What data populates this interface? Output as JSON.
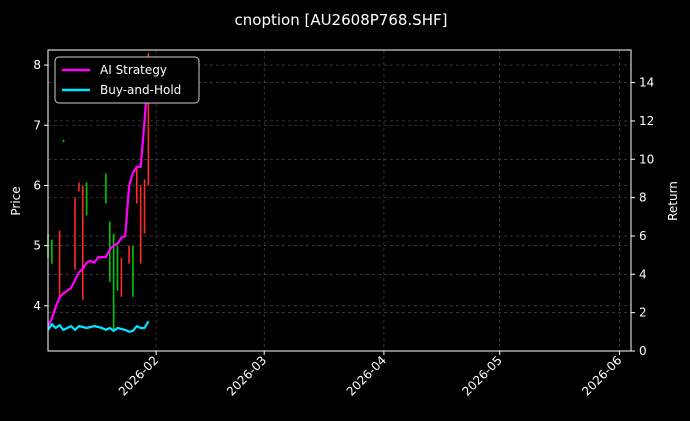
{
  "chart_data": {
    "type": "line",
    "title": "cnoption [AU2608P768.SHF]",
    "ylabel_left": "Price",
    "ylabel_right": "Return",
    "xlim": [
      "2026-01-04",
      "2026-06-04"
    ],
    "ylim_left": [
      3.25,
      8.25
    ],
    "ylim_right": [
      0,
      15.7
    ],
    "x_ticks": [
      "2026-02",
      "2026-03",
      "2026-04",
      "2026-05",
      "2026-06"
    ],
    "x_tick_dates": [
      "2026-02-01",
      "2026-03-01",
      "2026-04-01",
      "2026-05-01",
      "2026-06-01"
    ],
    "y_ticks_left": [
      4,
      5,
      6,
      7,
      8
    ],
    "y_ticks_right": [
      0,
      2,
      4,
      6,
      8,
      10,
      12,
      14
    ],
    "grid": true,
    "legend_position": "top-left",
    "series": [
      {
        "name": "AI Strategy",
        "color": "#ff00ff",
        "axis": "right",
        "x": [
          "2026-01-04",
          "2026-01-05",
          "2026-01-06",
          "2026-01-07",
          "2026-01-08",
          "2026-01-10",
          "2026-01-12",
          "2026-01-13",
          "2026-01-14",
          "2026-01-15",
          "2026-01-16",
          "2026-01-17",
          "2026-01-19",
          "2026-01-20",
          "2026-01-21",
          "2026-01-22",
          "2026-01-23",
          "2026-01-24",
          "2026-01-25",
          "2026-01-26",
          "2026-01-27",
          "2026-01-28",
          "2026-01-29",
          "2026-01-30"
        ],
        "values": [
          1.3,
          1.7,
          2.3,
          2.8,
          3.0,
          3.3,
          4.1,
          4.3,
          4.6,
          4.7,
          4.6,
          4.9,
          4.9,
          5.3,
          5.5,
          5.6,
          5.9,
          6.0,
          8.6,
          9.3,
          9.6,
          9.6,
          12.0,
          14.5
        ]
      },
      {
        "name": "Buy-and-Hold",
        "color": "#00e5ff",
        "axis": "right",
        "x": [
          "2026-01-04",
          "2026-01-05",
          "2026-01-06",
          "2026-01-07",
          "2026-01-08",
          "2026-01-10",
          "2026-01-11",
          "2026-01-12",
          "2026-01-13",
          "2026-01-14",
          "2026-01-16",
          "2026-01-17",
          "2026-01-18",
          "2026-01-19",
          "2026-01-20",
          "2026-01-21",
          "2026-01-22",
          "2026-01-24",
          "2026-01-25",
          "2026-01-26",
          "2026-01-27",
          "2026-01-28",
          "2026-01-29",
          "2026-01-30"
        ],
        "values": [
          1.1,
          1.4,
          1.2,
          1.35,
          1.1,
          1.3,
          1.1,
          1.3,
          1.25,
          1.2,
          1.3,
          1.25,
          1.2,
          1.1,
          1.2,
          1.05,
          1.2,
          1.1,
          1.0,
          1.05,
          1.3,
          1.2,
          1.2,
          1.55
        ]
      }
    ],
    "candles": {
      "up_color": "#00c800",
      "down_color": "#ff2a2a",
      "items": [
        {
          "date": "2026-01-04",
          "low": 4.8,
          "high": 5.2,
          "dir": "up"
        },
        {
          "date": "2026-01-05",
          "low": 4.7,
          "high": 5.1,
          "dir": "up"
        },
        {
          "date": "2026-01-07",
          "low": 4.15,
          "high": 5.25,
          "dir": "down"
        },
        {
          "date": "2026-01-08",
          "low": 6.72,
          "high": 6.76,
          "dir": "up"
        },
        {
          "date": "2026-01-11",
          "low": 4.6,
          "high": 5.8,
          "dir": "down"
        },
        {
          "date": "2026-01-12",
          "low": 5.9,
          "high": 6.05,
          "dir": "down"
        },
        {
          "date": "2026-01-13",
          "low": 4.1,
          "high": 6.0,
          "dir": "down"
        },
        {
          "date": "2026-01-14",
          "low": 5.5,
          "high": 6.05,
          "dir": "up"
        },
        {
          "date": "2026-01-19",
          "low": 5.7,
          "high": 6.2,
          "dir": "up"
        },
        {
          "date": "2026-01-20",
          "low": 4.4,
          "high": 5.4,
          "dir": "up"
        },
        {
          "date": "2026-01-21",
          "low": 3.6,
          "high": 5.2,
          "dir": "up"
        },
        {
          "date": "2026-01-22",
          "low": 4.25,
          "high": 5.0,
          "dir": "up"
        },
        {
          "date": "2026-01-23",
          "low": 4.15,
          "high": 4.8,
          "dir": "down"
        },
        {
          "date": "2026-01-25",
          "low": 4.7,
          "high": 5.0,
          "dir": "down"
        },
        {
          "date": "2026-01-26",
          "low": 4.15,
          "high": 5.0,
          "dir": "up"
        },
        {
          "date": "2026-01-27",
          "low": 5.7,
          "high": 6.3,
          "dir": "down"
        },
        {
          "date": "2026-01-28",
          "low": 4.7,
          "high": 6.0,
          "dir": "down"
        },
        {
          "date": "2026-01-29",
          "low": 5.2,
          "high": 6.1,
          "dir": "down"
        },
        {
          "date": "2026-01-30",
          "low": 6.0,
          "high": 8.2,
          "dir": "down"
        }
      ]
    }
  }
}
